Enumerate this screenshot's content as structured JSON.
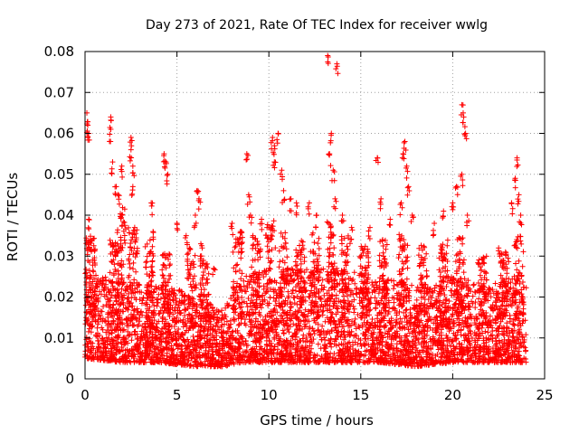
{
  "chart_data": {
    "type": "scatter",
    "title": "Day 273 of 2021, Rate Of TEC Index for receiver wwlg",
    "xlabel": "GPS time / hours",
    "ylabel": "ROTI / TECUs",
    "xlim": [
      0,
      25
    ],
    "ylim": [
      0,
      0.08
    ],
    "grid": true,
    "marker": "+",
    "color": "#ff0000",
    "x_ticks": [
      {
        "value": 0,
        "label": "0"
      },
      {
        "value": 5,
        "label": "5"
      },
      {
        "value": 10,
        "label": "10"
      },
      {
        "value": 15,
        "label": "15"
      },
      {
        "value": 20,
        "label": "20"
      },
      {
        "value": 25,
        "label": "25"
      }
    ],
    "y_ticks": [
      {
        "value": 0,
        "label": "0"
      },
      {
        "value": 0.01,
        "label": "0.01"
      },
      {
        "value": 0.02,
        "label": "0.02"
      },
      {
        "value": 0.03,
        "label": "0.03"
      },
      {
        "value": 0.04,
        "label": "0.04"
      },
      {
        "value": 0.05,
        "label": "0.05"
      },
      {
        "value": 0.06,
        "label": "0.06"
      },
      {
        "value": 0.07,
        "label": "0.07"
      },
      {
        "value": 0.08,
        "label": "0.08"
      }
    ],
    "series": [
      {
        "name": "ROTI",
        "points": [
          [
            0.1,
            0.065
          ],
          [
            0.15,
            0.062
          ],
          [
            0.2,
            0.06
          ],
          [
            0.2,
            0.039
          ],
          [
            0.3,
            0.034
          ],
          [
            0.5,
            0.029
          ],
          [
            1.4,
            0.064
          ],
          [
            1.4,
            0.061
          ],
          [
            1.5,
            0.053
          ],
          [
            1.7,
            0.047
          ],
          [
            1.8,
            0.045
          ],
          [
            2.0,
            0.052
          ],
          [
            2.0,
            0.04
          ],
          [
            2.5,
            0.059
          ],
          [
            2.5,
            0.056
          ],
          [
            2.6,
            0.052
          ],
          [
            2.6,
            0.047
          ],
          [
            2.7,
            0.037
          ],
          [
            3.6,
            0.043
          ],
          [
            3.7,
            0.036
          ],
          [
            4.3,
            0.055
          ],
          [
            4.4,
            0.053
          ],
          [
            4.5,
            0.05
          ],
          [
            5.0,
            0.038
          ],
          [
            5.5,
            0.035
          ],
          [
            6.0,
            0.04
          ],
          [
            6.3,
            0.033
          ],
          [
            6.1,
            0.046
          ],
          [
            6.2,
            0.044
          ],
          [
            7.0,
            0.027
          ],
          [
            8.0,
            0.038
          ],
          [
            8.5,
            0.036
          ],
          [
            8.8,
            0.055
          ],
          [
            8.9,
            0.045
          ],
          [
            9.0,
            0.04
          ],
          [
            9.6,
            0.039
          ],
          [
            9.9,
            0.037
          ],
          [
            10.2,
            0.059
          ],
          [
            10.3,
            0.057
          ],
          [
            10.3,
            0.053
          ],
          [
            10.5,
            0.06
          ],
          [
            10.7,
            0.051
          ],
          [
            10.8,
            0.046
          ],
          [
            11.2,
            0.044
          ],
          [
            11.5,
            0.043
          ],
          [
            12.2,
            0.043
          ],
          [
            12.6,
            0.04
          ],
          [
            13.2,
            0.079
          ],
          [
            13.3,
            0.055
          ],
          [
            13.4,
            0.06
          ],
          [
            13.5,
            0.051
          ],
          [
            13.6,
            0.044
          ],
          [
            13.7,
            0.077
          ],
          [
            14.0,
            0.04
          ],
          [
            14.5,
            0.037
          ],
          [
            15.5,
            0.037
          ],
          [
            15.9,
            0.054
          ],
          [
            16.1,
            0.044
          ],
          [
            16.6,
            0.039
          ],
          [
            17.2,
            0.043
          ],
          [
            17.3,
            0.055
          ],
          [
            17.4,
            0.058
          ],
          [
            17.5,
            0.052
          ],
          [
            17.6,
            0.047
          ],
          [
            17.8,
            0.04
          ],
          [
            19.0,
            0.038
          ],
          [
            19.5,
            0.041
          ],
          [
            20.0,
            0.043
          ],
          [
            20.2,
            0.047
          ],
          [
            20.5,
            0.067
          ],
          [
            20.6,
            0.064
          ],
          [
            20.7,
            0.06
          ],
          [
            20.5,
            0.05
          ],
          [
            20.8,
            0.04
          ],
          [
            22.5,
            0.032
          ],
          [
            23.2,
            0.043
          ],
          [
            23.4,
            0.049
          ],
          [
            23.5,
            0.054
          ],
          [
            23.6,
            0.045
          ],
          [
            23.7,
            0.04
          ]
        ],
        "dense_band": {
          "x_range": [
            0,
            24
          ],
          "envelope": [
            {
              "x": 0,
              "low": 0.005,
              "high": 0.025
            },
            {
              "x": 2,
              "low": 0.004,
              "high": 0.023
            },
            {
              "x": 4,
              "low": 0.004,
              "high": 0.022
            },
            {
              "x": 6,
              "low": 0.003,
              "high": 0.02
            },
            {
              "x": 7.5,
              "low": 0.003,
              "high": 0.016
            },
            {
              "x": 8.5,
              "low": 0.004,
              "high": 0.024
            },
            {
              "x": 10,
              "low": 0.004,
              "high": 0.026
            },
            {
              "x": 12,
              "low": 0.004,
              "high": 0.026
            },
            {
              "x": 14,
              "low": 0.004,
              "high": 0.026
            },
            {
              "x": 16,
              "low": 0.004,
              "high": 0.024
            },
            {
              "x": 18,
              "low": 0.003,
              "high": 0.022
            },
            {
              "x": 20,
              "low": 0.004,
              "high": 0.024
            },
            {
              "x": 22,
              "low": 0.004,
              "high": 0.022
            },
            {
              "x": 24,
              "low": 0.004,
              "high": 0.025
            }
          ],
          "spikes": [
            {
              "x": 0.3,
              "peak": 0.035
            },
            {
              "x": 1.6,
              "peak": 0.034
            },
            {
              "x": 2.0,
              "peak": 0.042
            },
            {
              "x": 2.6,
              "peak": 0.037
            },
            {
              "x": 3.5,
              "peak": 0.034
            },
            {
              "x": 4.4,
              "peak": 0.031
            },
            {
              "x": 5.8,
              "peak": 0.032
            },
            {
              "x": 6.5,
              "peak": 0.03
            },
            {
              "x": 8.3,
              "peak": 0.036
            },
            {
              "x": 9.3,
              "peak": 0.035
            },
            {
              "x": 10.1,
              "peak": 0.04
            },
            {
              "x": 10.8,
              "peak": 0.036
            },
            {
              "x": 11.7,
              "peak": 0.034
            },
            {
              "x": 12.5,
              "peak": 0.036
            },
            {
              "x": 13.4,
              "peak": 0.039
            },
            {
              "x": 14.2,
              "peak": 0.035
            },
            {
              "x": 15.2,
              "peak": 0.033
            },
            {
              "x": 16.2,
              "peak": 0.034
            },
            {
              "x": 17.3,
              "peak": 0.036
            },
            {
              "x": 18.4,
              "peak": 0.033
            },
            {
              "x": 19.5,
              "peak": 0.034
            },
            {
              "x": 20.4,
              "peak": 0.035
            },
            {
              "x": 21.6,
              "peak": 0.03
            },
            {
              "x": 22.8,
              "peak": 0.031
            },
            {
              "x": 23.6,
              "peak": 0.035
            }
          ]
        }
      }
    ]
  }
}
